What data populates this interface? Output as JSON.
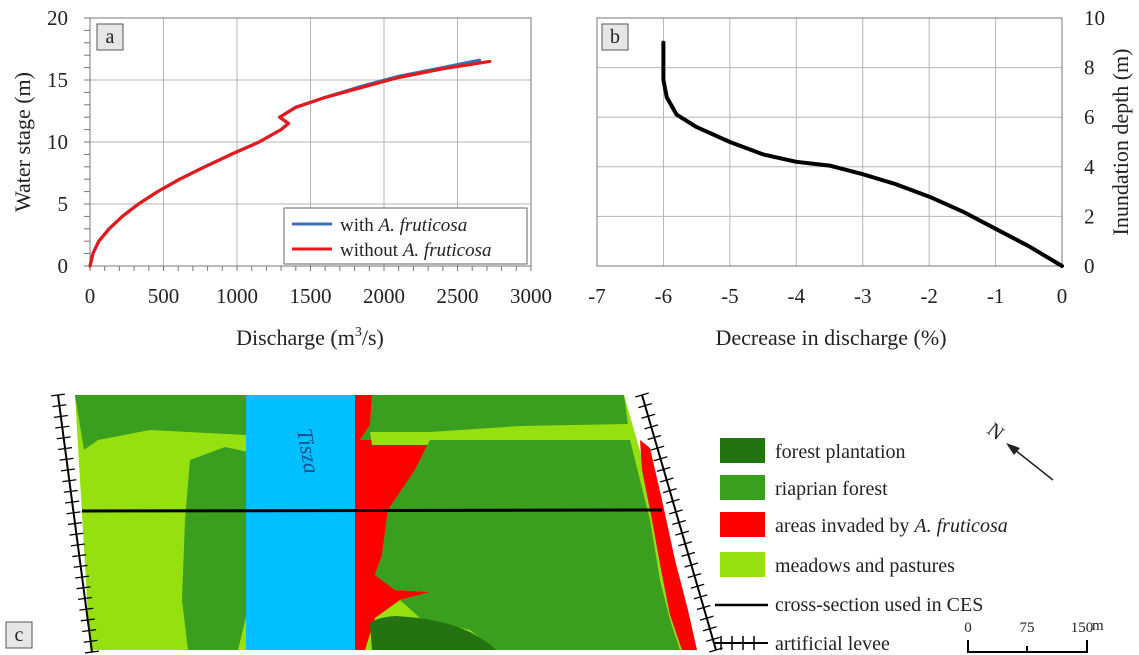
{
  "chart_data": [
    {
      "panel": "a",
      "type": "line",
      "xlabel_main": "Discharge (m",
      "xlabel_sup": "3",
      "xlabel_tail": "/s)",
      "ylabel": "Water stage (m)",
      "xlim": [
        0,
        3000
      ],
      "ylim": [
        0,
        20
      ],
      "xticks": [
        "0",
        "500",
        "1000",
        "1500",
        "2000",
        "2500",
        "3000"
      ],
      "yticks": [
        "0",
        "5",
        "10",
        "15",
        "20"
      ],
      "xtick_values": [
        0,
        500,
        1000,
        1500,
        2000,
        2500,
        3000
      ],
      "ytick_values": [
        0,
        5,
        10,
        15,
        20
      ],
      "grid": true,
      "legend_position": "bottom-right",
      "series": [
        {
          "name_prefix": "with ",
          "name_italic": "A. fruticosa",
          "color": "#3c6fb0",
          "points": [
            [
              0,
              0
            ],
            [
              20,
              1
            ],
            [
              60,
              2
            ],
            [
              130,
              3
            ],
            [
              220,
              4
            ],
            [
              330,
              5
            ],
            [
              460,
              6
            ],
            [
              610,
              7
            ],
            [
              780,
              8
            ],
            [
              960,
              9
            ],
            [
              1150,
              10
            ],
            [
              1300,
              11
            ],
            [
              1350,
              11.5
            ],
            [
              1290,
              12
            ],
            [
              1400,
              12.8
            ],
            [
              1600,
              13.6
            ],
            [
              1850,
              14.5
            ],
            [
              2100,
              15.3
            ],
            [
              2400,
              16
            ],
            [
              2650,
              16.6
            ]
          ]
        },
        {
          "name_prefix": "without ",
          "name_italic": "A. fruticosa",
          "color": "#e31a1c",
          "points": [
            [
              0,
              0
            ],
            [
              20,
              1
            ],
            [
              60,
              2
            ],
            [
              130,
              3
            ],
            [
              220,
              4
            ],
            [
              330,
              5
            ],
            [
              460,
              6
            ],
            [
              610,
              7
            ],
            [
              780,
              8
            ],
            [
              960,
              9
            ],
            [
              1150,
              10
            ],
            [
              1300,
              11
            ],
            [
              1350,
              11.5
            ],
            [
              1290,
              12
            ],
            [
              1400,
              12.8
            ],
            [
              1600,
              13.6
            ],
            [
              1850,
              14.4
            ],
            [
              2100,
              15.2
            ],
            [
              2400,
              15.9
            ],
            [
              2720,
              16.5
            ]
          ]
        }
      ]
    },
    {
      "panel": "b",
      "type": "line",
      "xlabel": "Decrease in discharge (%)",
      "ylabel": "Inundation depth (m)",
      "xlim": [
        -7,
        0
      ],
      "ylim": [
        0,
        10
      ],
      "xticks": [
        "-7",
        "-6",
        "-5",
        "-4",
        "-3",
        "-2",
        "-1",
        "0"
      ],
      "yticks": [
        "0",
        "2",
        "4",
        "6",
        "8",
        "10"
      ],
      "xtick_values": [
        -7,
        -6,
        -5,
        -4,
        -3,
        -2,
        -1,
        0
      ],
      "ytick_values": [
        0,
        2,
        4,
        6,
        8,
        10
      ],
      "grid": true,
      "series": [
        {
          "color": "#000000",
          "points": [
            [
              0,
              0
            ],
            [
              -0.5,
              0.8
            ],
            [
              -1,
              1.5
            ],
            [
              -1.5,
              2.2
            ],
            [
              -2,
              2.8
            ],
            [
              -2.5,
              3.3
            ],
            [
              -3,
              3.7
            ],
            [
              -3.5,
              4.05
            ],
            [
              -4,
              4.2
            ],
            [
              -4.5,
              4.5
            ],
            [
              -5,
              5
            ],
            [
              -5.5,
              5.6
            ],
            [
              -5.8,
              6.1
            ],
            [
              -5.95,
              6.8
            ],
            [
              -6,
              7.5
            ],
            [
              -6,
              8.2
            ],
            [
              -6,
              9
            ]
          ]
        }
      ]
    }
  ],
  "map": {
    "panel_label": "c",
    "river_label": "Tisza",
    "north_label": "N",
    "colors": {
      "forest_plantation": "#247312",
      "riparian_forest": "#3a9e1e",
      "invaded": "#ff0000",
      "meadows": "#96e00f",
      "river": "#00c0ff"
    },
    "legend": [
      {
        "label": "forest plantation",
        "color": "#247312"
      },
      {
        "label": "riaprian forest",
        "color": "#3a9e1e"
      },
      {
        "label_prefix": "areas invaded by ",
        "label_italic": "A. fruticosa",
        "color": "#ff0000"
      },
      {
        "label": "meadows and pastures",
        "color": "#96e00f"
      }
    ],
    "line_legend": {
      "label": "cross-section used in CES"
    },
    "levee_legend": {
      "label": "artificial levee"
    },
    "scale_bar": {
      "ticks": [
        "0",
        "75",
        "150"
      ],
      "unit": "m"
    }
  }
}
